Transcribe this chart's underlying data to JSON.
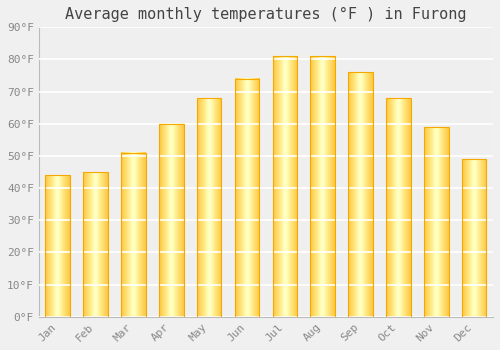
{
  "title": "Average monthly temperatures (°F ) in Furong",
  "months": [
    "Jan",
    "Feb",
    "Mar",
    "Apr",
    "May",
    "Jun",
    "Jul",
    "Aug",
    "Sep",
    "Oct",
    "Nov",
    "Dec"
  ],
  "values": [
    44,
    45,
    51,
    60,
    68,
    74,
    81,
    81,
    76,
    68,
    59,
    49
  ],
  "bar_color_center": "#FFD966",
  "bar_color_edge": "#F5A800",
  "background_color": "#F0F0F0",
  "plot_bg_color": "#EFEFEF",
  "ylim": [
    0,
    90
  ],
  "ytick_step": 10,
  "title_fontsize": 11,
  "tick_fontsize": 8,
  "grid_color": "#FFFFFF",
  "axis_color": "#BBBBBB",
  "tick_color": "#888888"
}
